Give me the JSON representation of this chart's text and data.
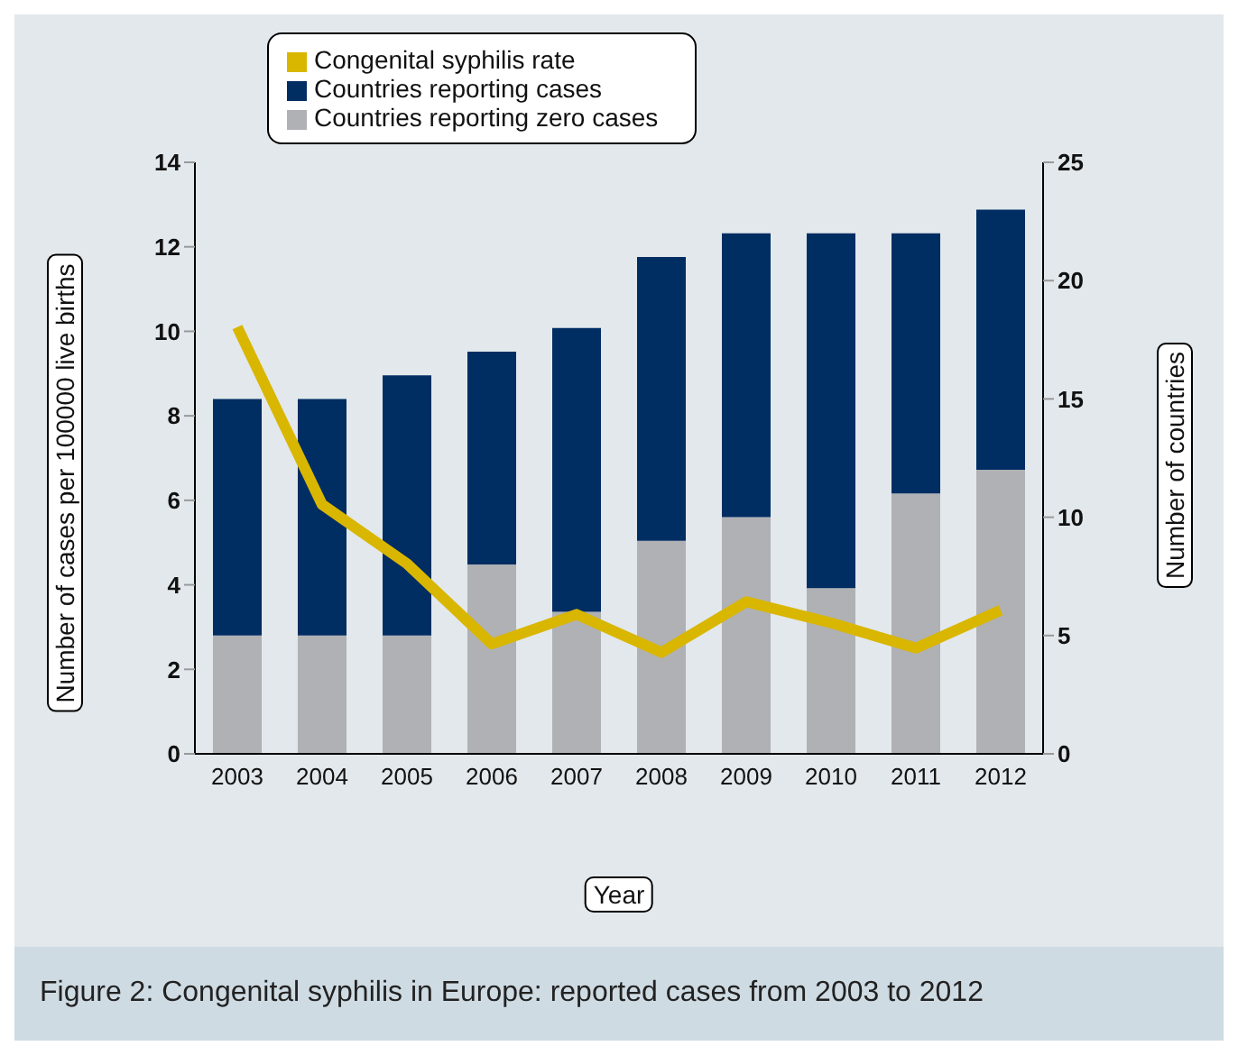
{
  "chart_data": {
    "type": "bar",
    "title": "Figure 2: Congenital syphilis in Europe: reported cases from 2003 to 2012",
    "xlabel": "Year",
    "ylabel": "Number of cases per 100000 live births",
    "y2label": "Number of countries",
    "categories": [
      "2003",
      "2004",
      "2005",
      "2006",
      "2007",
      "2008",
      "2009",
      "2010",
      "2011",
      "2012"
    ],
    "stacked": true,
    "series": [
      {
        "name": "Countries reporting zero cases",
        "color": "#b0b1b4",
        "axis": "y2",
        "values": [
          5,
          5,
          5,
          8,
          6,
          9,
          10,
          7,
          11,
          12
        ]
      },
      {
        "name": "Countries reporting cases",
        "color": "#002d62",
        "axis": "y2",
        "values": [
          10,
          10,
          11,
          9,
          12,
          12,
          12,
          15,
          11,
          11
        ]
      },
      {
        "name": "Congenital syphilis rate",
        "type": "line",
        "color": "#d9b600",
        "axis": "y",
        "values": [
          10.1,
          5.9,
          4.5,
          2.6,
          3.3,
          2.4,
          3.6,
          3.1,
          2.5,
          3.4
        ]
      }
    ],
    "ylim": [
      0,
      14
    ],
    "yticks": [
      0,
      2,
      4,
      6,
      8,
      10,
      12,
      14
    ],
    "y2lim": [
      0,
      25
    ],
    "y2ticks": [
      0,
      5,
      10,
      15,
      20,
      25
    ],
    "grid": false,
    "legend": "top",
    "marker": "none"
  }
}
